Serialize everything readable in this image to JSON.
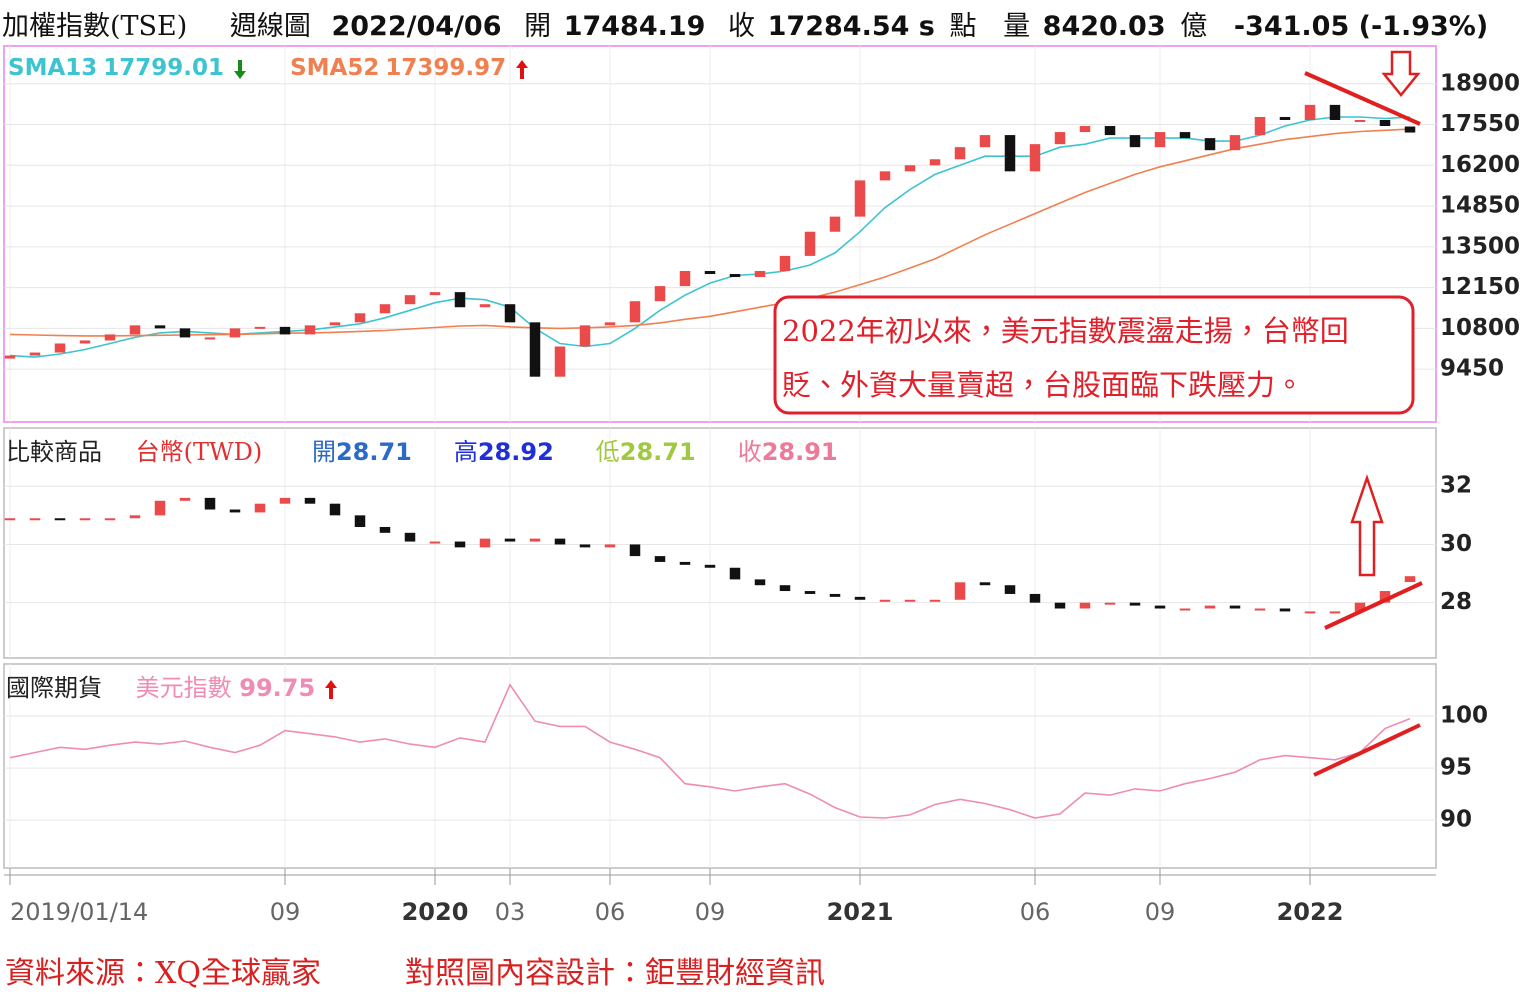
{
  "header": {
    "title": "加權指數(TSE)",
    "period": "週線圖",
    "date": "2022/04/06",
    "open_label": "開",
    "open": "17484.19",
    "close_label": "收",
    "close": "17284.54 s",
    "close_unit": "點",
    "volume_label": "量",
    "volume": "8420.03",
    "volume_unit": "億",
    "change": "-341.05 (-1.93%)"
  },
  "annotation": [
    "2022年初以來，美元指數震盪走揚，台幣回",
    "貶、外資大量賣超，台股面臨下跌壓力。"
  ],
  "footer": [
    "資料來源：XQ全球贏家",
    "對照圖內容設計：鉅豐財經資訊"
  ],
  "chart_data": [
    {
      "type": "candlestick",
      "title": "加權指數(TSE)",
      "up_color": "#ea4a4a",
      "down_color": "#111111",
      "grid": true,
      "categories": [
        "2019/01/14",
        null,
        null,
        null,
        null,
        null,
        null,
        null,
        null,
        null,
        null,
        "09",
        null,
        null,
        null,
        null,
        null,
        "2020",
        null,
        null,
        "03",
        null,
        null,
        null,
        "06",
        null,
        null,
        null,
        "09",
        null,
        null,
        null,
        null,
        null,
        "2021",
        null,
        null,
        null,
        null,
        null,
        null,
        "06",
        null,
        null,
        null,
        null,
        "09",
        null,
        null,
        null,
        null,
        null,
        "2022",
        null,
        null,
        null,
        null
      ],
      "open": [
        9800,
        9900,
        10000,
        10300,
        10400,
        10600,
        10900,
        10800,
        10500,
        10500,
        10800,
        10850,
        10600,
        10900,
        11000,
        11300,
        11600,
        11900,
        12000,
        11500,
        11600,
        11000,
        9200,
        10200,
        10900,
        11000,
        11700,
        12200,
        12700,
        12600,
        12500,
        12700,
        13200,
        14000,
        14500,
        15700,
        16000,
        16200,
        16400,
        16800,
        17200,
        16000,
        16900,
        17300,
        17500,
        17200,
        16800,
        17300,
        17100,
        16700,
        17200,
        17800,
        17700,
        18200,
        17700,
        17700,
        17484.19
      ],
      "close": [
        9900,
        10000,
        10300,
        10400,
        10600,
        10900,
        10800,
        10500,
        10500,
        10800,
        10850,
        10600,
        10900,
        11000,
        11300,
        11600,
        11900,
        12000,
        11500,
        11600,
        11000,
        9200,
        10200,
        10900,
        11000,
        11700,
        12200,
        12700,
        12600,
        12500,
        12700,
        13200,
        14000,
        14500,
        15700,
        16000,
        16200,
        16400,
        16800,
        17200,
        16000,
        16900,
        17300,
        17500,
        17200,
        16800,
        17300,
        17100,
        16700,
        17200,
        17800,
        17700,
        18200,
        17700,
        17700,
        17500,
        17284.54
      ],
      "overlays": [
        {
          "name": "SMA13",
          "value_label": "17799.01",
          "color": "#3cc4d0",
          "values": [
            9900,
            9850,
            9950,
            10100,
            10300,
            10500,
            10650,
            10700,
            10650,
            10600,
            10650,
            10700,
            10750,
            10850,
            10950,
            11150,
            11400,
            11650,
            11800,
            11750,
            11500,
            10800,
            10300,
            10200,
            10300,
            10800,
            11400,
            11900,
            12300,
            12550,
            12600,
            12700,
            12900,
            13300,
            14000,
            14800,
            15400,
            15900,
            16200,
            16500,
            16500,
            16500,
            16800,
            16900,
            17100,
            17100,
            17100,
            17100,
            17000,
            17000,
            17200,
            17500,
            17700,
            17800,
            17800,
            17750,
            17799.01
          ]
        },
        {
          "name": "SMA52",
          "value_label": "17399.97",
          "color": "#f08050",
          "values": [
            10600,
            10580,
            10560,
            10550,
            10550,
            10560,
            10570,
            10580,
            10590,
            10600,
            10620,
            10640,
            10650,
            10670,
            10700,
            10730,
            10780,
            10830,
            10880,
            10900,
            10850,
            10820,
            10800,
            10820,
            10850,
            10900,
            10980,
            11100,
            11200,
            11350,
            11500,
            11650,
            11800,
            12000,
            12250,
            12500,
            12800,
            13100,
            13500,
            13900,
            14250,
            14600,
            14950,
            15300,
            15600,
            15900,
            16150,
            16350,
            16550,
            16750,
            16900,
            17050,
            17150,
            17250,
            17320,
            17360,
            17399.97
          ]
        }
      ],
      "ylim": [
        7700,
        20150
      ],
      "yticks": [
        9450,
        10800,
        12150,
        13500,
        14850,
        16200,
        17550,
        18900
      ]
    },
    {
      "type": "candlestick",
      "section": "比較商品",
      "title": "台幣(TWD)",
      "title_color": "#e03030",
      "up_color": "#ea4a4a",
      "down_color": "#111111",
      "grid": true,
      "stats": [
        {
          "label": "開",
          "value": "28.71",
          "color": "#2a6ac8"
        },
        {
          "label": "高",
          "value": "28.92",
          "color": "#2030d8"
        },
        {
          "label": "低",
          "value": "28.71",
          "color": "#a0c840"
        },
        {
          "label": "收",
          "value": "28.91",
          "color": "#ec7a98"
        }
      ],
      "open": [
        30.85,
        30.9,
        30.9,
        30.85,
        30.9,
        30.9,
        31.0,
        31.5,
        31.6,
        31.2,
        31.1,
        31.4,
        31.6,
        31.4,
        31.0,
        30.6,
        30.4,
        30.1,
        30.1,
        29.9,
        30.2,
        30.1,
        30.2,
        30.0,
        29.9,
        30.0,
        29.6,
        29.4,
        29.3,
        29.2,
        28.8,
        28.6,
        28.4,
        28.3,
        28.2,
        28.1,
        28.1,
        28.1,
        28.1,
        28.7,
        28.6,
        28.3,
        28.0,
        27.8,
        28.0,
        28.0,
        27.9,
        27.8,
        27.8,
        27.9,
        27.8,
        27.8,
        27.7,
        27.7,
        27.7,
        28.0,
        28.71
      ],
      "close": [
        30.9,
        30.9,
        30.85,
        30.9,
        30.9,
        31.0,
        31.5,
        31.6,
        31.2,
        31.1,
        31.4,
        31.6,
        31.4,
        31.0,
        30.6,
        30.4,
        30.1,
        30.1,
        29.9,
        30.2,
        30.1,
        30.2,
        30.0,
        29.9,
        30.0,
        29.6,
        29.4,
        29.3,
        29.2,
        28.8,
        28.6,
        28.4,
        28.3,
        28.2,
        28.1,
        28.1,
        28.1,
        28.1,
        28.7,
        28.6,
        28.3,
        28.0,
        27.8,
        28.0,
        28.0,
        27.9,
        27.8,
        27.8,
        27.9,
        27.8,
        27.8,
        27.7,
        27.7,
        27.7,
        28.0,
        28.4,
        28.91
      ],
      "ylim": [
        26.1,
        34.0
      ],
      "yticks": [
        28,
        30,
        32
      ]
    },
    {
      "type": "line",
      "section": "國際期貨",
      "grid": true,
      "series": [
        {
          "name": "美元指數",
          "value_label": "99.75",
          "color": "#f08cb4",
          "values": [
            96.0,
            96.5,
            97.0,
            96.8,
            97.2,
            97.5,
            97.3,
            97.6,
            97.0,
            96.5,
            97.2,
            98.6,
            98.3,
            98.0,
            97.5,
            97.8,
            97.3,
            97.0,
            97.9,
            97.5,
            103.0,
            99.5,
            99.0,
            99.0,
            97.5,
            96.8,
            96.0,
            93.5,
            93.2,
            92.8,
            93.2,
            93.5,
            92.5,
            91.2,
            90.3,
            90.2,
            90.5,
            91.5,
            92.0,
            91.6,
            91.0,
            90.2,
            90.6,
            92.6,
            92.4,
            93.0,
            92.8,
            93.5,
            94.0,
            94.6,
            95.8,
            96.2,
            96.0,
            95.8,
            96.5,
            98.8,
            99.75
          ]
        }
      ],
      "ylim": [
        85.4,
        105
      ],
      "yticks": [
        90,
        95,
        100
      ]
    }
  ]
}
